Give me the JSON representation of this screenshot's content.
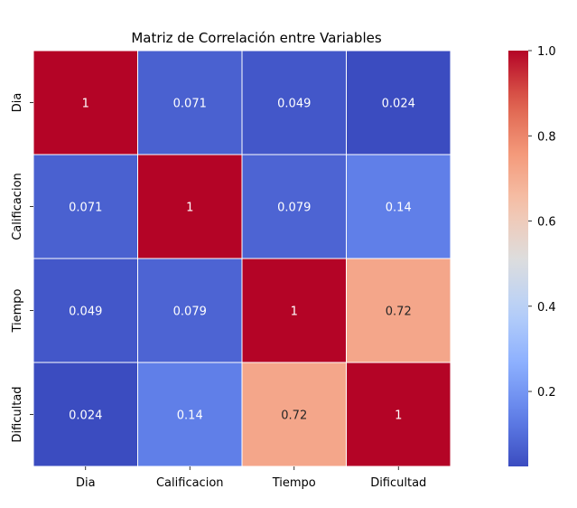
{
  "chart_data": {
    "type": "heatmap",
    "title": "Matriz de Correlación entre Variables",
    "x_labels": [
      "Dia",
      "Calificacion",
      "Tiempo",
      "Dificultad"
    ],
    "y_labels": [
      "Dia",
      "Calificacion",
      "Tiempo",
      "Dificultad"
    ],
    "values": [
      [
        1,
        0.071,
        0.049,
        0.024
      ],
      [
        0.071,
        1,
        0.079,
        0.14
      ],
      [
        0.049,
        0.079,
        1,
        0.72
      ],
      [
        0.024,
        0.14,
        0.72,
        1
      ]
    ],
    "annotations": [
      [
        "1",
        "0.071",
        "0.049",
        "0.024"
      ],
      [
        "0.071",
        "1",
        "0.079",
        "0.14"
      ],
      [
        "0.049",
        "0.079",
        "1",
        "0.72"
      ],
      [
        "0.024",
        "0.14",
        "0.72",
        "1"
      ]
    ],
    "colormap": "coolwarm",
    "vmin": 0.024,
    "vmax": 1.0,
    "colorbar_ticks": [
      {
        "value": 0.2,
        "label": "0.2"
      },
      {
        "value": 0.4,
        "label": "0.4"
      },
      {
        "value": 0.6,
        "label": "0.6"
      },
      {
        "value": 0.8,
        "label": "0.8"
      },
      {
        "value": 1.0,
        "label": "1.0"
      }
    ],
    "legend": "colorbar-right",
    "cell_borders": true
  }
}
